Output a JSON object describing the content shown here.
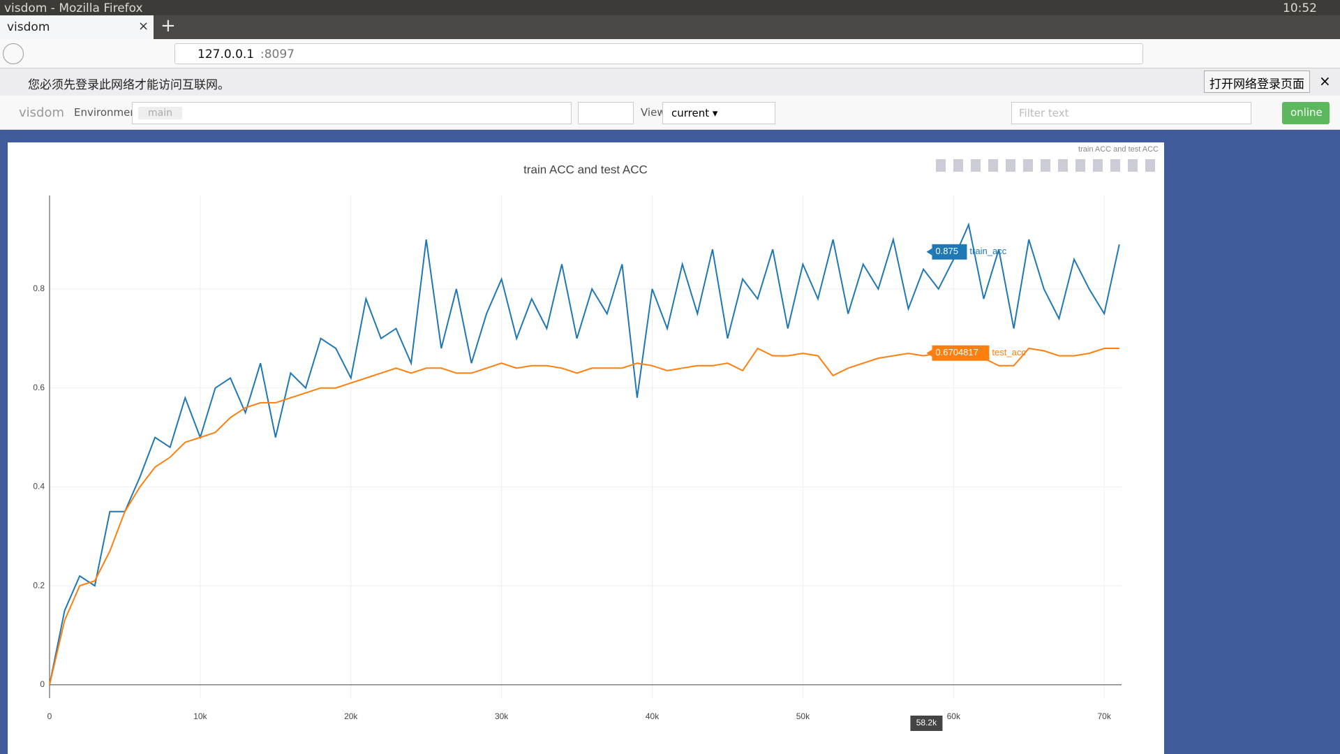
{
  "window": {
    "title": "visdom - Mozilla Firefox",
    "clock": "10:52"
  },
  "browser": {
    "tab": "visdom",
    "url_host": "127.0.0.1",
    "url_port": ":8097"
  },
  "notification": {
    "text": "您必须先登录此网络才能访问互联网。",
    "button": "打开网络登录页面"
  },
  "toolbar": {
    "brand": "visdom",
    "env_label": "Environment",
    "env": "main",
    "view_label": "View",
    "view": "current",
    "filter": "Filter text",
    "status": "online"
  },
  "chart_data": {
    "type": "line",
    "title": "train ACC and test ACC",
    "x": [
      0,
      1000,
      2000,
      3000,
      4000,
      5000,
      6000,
      7000,
      8000,
      9000,
      10000,
      11000,
      12000,
      13000,
      14000,
      15000,
      16000,
      17000,
      18000,
      19000,
      20000,
      21000,
      22000,
      23000,
      24000,
      25000,
      26000,
      27000,
      28000,
      29000,
      30000,
      31000,
      32000,
      33000,
      34000,
      35000,
      36000,
      37000,
      38000,
      39000,
      40000,
      41000,
      42000,
      43000,
      44000,
      45000,
      46000,
      47000,
      48000,
      49000,
      50000,
      51000,
      52000,
      53000,
      54000,
      55000,
      56000,
      57000,
      58000,
      59000,
      60000,
      61000,
      62000,
      63000,
      64000,
      65000,
      66000,
      67000,
      68000,
      69000,
      70000,
      71000
    ],
    "series": [
      {
        "name": "train_acc",
        "color": "#1f77b4",
        "values": [
          0.0,
          0.15,
          0.22,
          0.2,
          0.35,
          0.35,
          0.42,
          0.5,
          0.48,
          0.58,
          0.5,
          0.6,
          0.62,
          0.55,
          0.65,
          0.5,
          0.63,
          0.6,
          0.7,
          0.68,
          0.62,
          0.78,
          0.7,
          0.72,
          0.65,
          0.9,
          0.68,
          0.8,
          0.65,
          0.75,
          0.82,
          0.7,
          0.78,
          0.72,
          0.85,
          0.7,
          0.8,
          0.75,
          0.85,
          0.58,
          0.8,
          0.72,
          0.85,
          0.75,
          0.88,
          0.7,
          0.82,
          0.78,
          0.88,
          0.72,
          0.85,
          0.78,
          0.9,
          0.75,
          0.85,
          0.8,
          0.9,
          0.76,
          0.84,
          0.8,
          0.86,
          0.93,
          0.78,
          0.88,
          0.72,
          0.9,
          0.8,
          0.74,
          0.86,
          0.8,
          0.75,
          0.89
        ]
      },
      {
        "name": "test_acc",
        "color": "#ff7f0e",
        "values": [
          0.0,
          0.13,
          0.2,
          0.21,
          0.27,
          0.35,
          0.4,
          0.44,
          0.46,
          0.49,
          0.5,
          0.51,
          0.54,
          0.56,
          0.57,
          0.57,
          0.58,
          0.59,
          0.6,
          0.6,
          0.61,
          0.62,
          0.63,
          0.64,
          0.63,
          0.64,
          0.64,
          0.63,
          0.63,
          0.64,
          0.65,
          0.64,
          0.645,
          0.645,
          0.64,
          0.63,
          0.64,
          0.64,
          0.64,
          0.65,
          0.645,
          0.635,
          0.64,
          0.645,
          0.645,
          0.65,
          0.635,
          0.68,
          0.665,
          0.665,
          0.67,
          0.665,
          0.625,
          0.64,
          0.65,
          0.66,
          0.665,
          0.67,
          0.665,
          0.67,
          0.67,
          0.66,
          0.66,
          0.645,
          0.645,
          0.68,
          0.675,
          0.665,
          0.665,
          0.67,
          0.68,
          0.68
        ]
      }
    ],
    "xlim": [
      0,
      71150
    ],
    "ylim": [
      -0.027,
      0.989
    ],
    "xticks": [
      0,
      {
        "value": 10000,
        "label": "10k"
      },
      {
        "value": 20000,
        "label": "20k"
      },
      {
        "value": 30000,
        "label": "30k"
      },
      {
        "value": 40000,
        "label": "40k"
      },
      {
        "value": 50000,
        "label": "50k"
      },
      {
        "value": 60000,
        "label": "60k"
      },
      {
        "value": 70000,
        "label": "70k"
      }
    ],
    "yticks": [
      0,
      0.2,
      0.4,
      0.6,
      0.8
    ],
    "grid": true,
    "hover": {
      "x": {
        "value": 58200,
        "label": "58.2k"
      },
      "values": [
        0.875,
        0.6704817
      ]
    }
  }
}
